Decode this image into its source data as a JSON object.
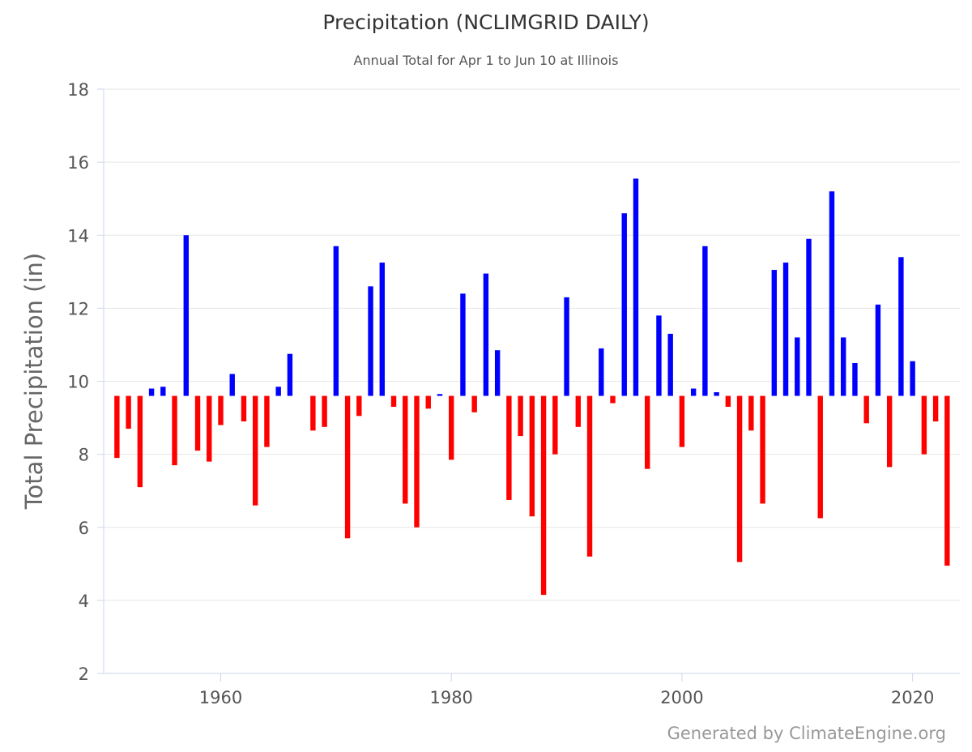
{
  "chart_data": {
    "type": "bar",
    "title": "Precipitation (NCLIMGRID DAILY)",
    "subtitle": "Annual Total for Apr 1 to Jun 10 at Illinois",
    "ylabel": "Total Precipitation (in)",
    "xlabel": "",
    "ylim": [
      2,
      18
    ],
    "yticks": [
      "2",
      "4",
      "6",
      "8",
      "10",
      "12",
      "14",
      "16",
      "18"
    ],
    "xticks": [
      "1960",
      "1980",
      "2000",
      "2020"
    ],
    "baseline": 9.6,
    "grid": true,
    "legend": "none",
    "colors": {
      "above": "#0000ff",
      "below": "#ff0000"
    },
    "x": [
      1951,
      1952,
      1953,
      1954,
      1955,
      1956,
      1957,
      1958,
      1959,
      1960,
      1961,
      1962,
      1963,
      1964,
      1965,
      1966,
      1967,
      1968,
      1969,
      1970,
      1971,
      1972,
      1973,
      1974,
      1975,
      1976,
      1977,
      1978,
      1979,
      1980,
      1981,
      1982,
      1983,
      1984,
      1985,
      1986,
      1987,
      1988,
      1989,
      1990,
      1991,
      1992,
      1993,
      1994,
      1995,
      1996,
      1997,
      1998,
      1999,
      2000,
      2001,
      2002,
      2003,
      2004,
      2005,
      2006,
      2007,
      2008,
      2009,
      2010,
      2011,
      2012,
      2013,
      2014,
      2015,
      2016,
      2017,
      2018,
      2019,
      2020,
      2021,
      2022,
      2023
    ],
    "values": [
      7.9,
      8.7,
      7.1,
      9.8,
      9.85,
      7.7,
      14.0,
      8.1,
      7.8,
      8.8,
      10.2,
      8.9,
      6.6,
      8.2,
      9.85,
      10.75,
      null,
      8.65,
      8.75,
      13.7,
      5.7,
      9.05,
      12.6,
      13.25,
      9.3,
      6.65,
      6.0,
      9.25,
      9.65,
      7.85,
      12.4,
      9.15,
      12.95,
      10.85,
      6.75,
      8.5,
      6.3,
      4.15,
      8.0,
      12.3,
      8.75,
      5.2,
      10.9,
      9.4,
      14.6,
      15.55,
      7.6,
      11.8,
      11.3,
      8.2,
      9.8,
      13.7,
      9.7,
      9.3,
      5.05,
      8.65,
      6.65,
      13.05,
      13.25,
      11.2,
      13.9,
      6.25,
      15.2,
      11.2,
      10.5,
      8.85,
      12.1,
      7.65,
      13.4,
      10.55,
      8.0,
      8.9,
      4.95
    ]
  },
  "credits": "Generated by ClimateEngine.org"
}
